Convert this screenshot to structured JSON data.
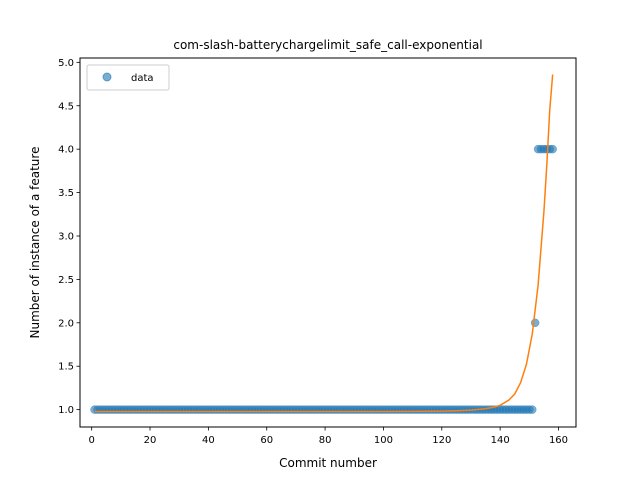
{
  "chart_data": {
    "type": "scatter",
    "title": "com-slash-batterychargelimit_safe_call-exponential",
    "xlabel": "Commit number",
    "ylabel": "Number of instance of a feature",
    "xlim": [
      -4,
      166
    ],
    "ylim": [
      0.8,
      5.05
    ],
    "x_ticks": [
      0,
      20,
      40,
      60,
      80,
      100,
      120,
      140,
      160
    ],
    "y_ticks": [
      1.0,
      1.5,
      2.0,
      2.5,
      3.0,
      3.5,
      4.0,
      4.5,
      5.0
    ],
    "x_tick_labels": [
      "0",
      "20",
      "40",
      "60",
      "80",
      "100",
      "120",
      "140",
      "160"
    ],
    "y_tick_labels": [
      "1.0",
      "1.5",
      "2.0",
      "2.5",
      "3.0",
      "3.5",
      "4.0",
      "4.5",
      "5.0"
    ],
    "grid": false,
    "legend_position": "upper-left",
    "series": [
      {
        "name": "data",
        "kind": "points",
        "color": "#1f77b4",
        "points": [
          {
            "x_from": 1,
            "x_to": 151,
            "y": 1.0
          },
          {
            "x_from": 152,
            "x_to": 152,
            "y": 2.0
          },
          {
            "x_from": 153,
            "x_to": 158,
            "y": 4.0
          }
        ]
      },
      {
        "kind": "fit-curve",
        "color": "#ff7f0e",
        "model": "exponential",
        "curve": [
          [
            1,
            0.978
          ],
          [
            20,
            0.978
          ],
          [
            40,
            0.978
          ],
          [
            60,
            0.978
          ],
          [
            80,
            0.978
          ],
          [
            100,
            0.979
          ],
          [
            110,
            0.98
          ],
          [
            120,
            0.983
          ],
          [
            125,
            0.987
          ],
          [
            130,
            0.994
          ],
          [
            135,
            1.01
          ],
          [
            138,
            1.03
          ],
          [
            140,
            1.05
          ],
          [
            143,
            1.11
          ],
          [
            145,
            1.18
          ],
          [
            147,
            1.31
          ],
          [
            149,
            1.52
          ],
          [
            151,
            1.87
          ],
          [
            153,
            2.43
          ],
          [
            155,
            3.28
          ],
          [
            156,
            3.82
          ],
          [
            157,
            4.45
          ],
          [
            158,
            4.86
          ]
        ]
      }
    ]
  }
}
